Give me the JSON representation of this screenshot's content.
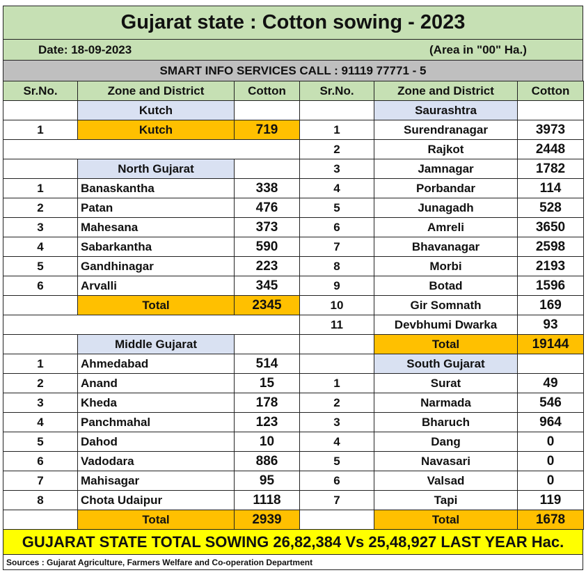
{
  "header": {
    "title": "Gujarat state : Cotton sowing - 2023",
    "date": "Date: 18-09-2023",
    "unit": "(Area in \"00\" Ha.)",
    "contact": "SMART INFO SERVICES CALL : 91119 77771 - 5"
  },
  "columns": [
    "Sr.No.",
    "Zone and District",
    "Cotton"
  ],
  "left": [
    {
      "zone": "Kutch",
      "rows": [
        [
          1,
          "Kutch",
          719
        ]
      ]
    },
    {
      "zone": "North Gujarat",
      "rows": [
        [
          1,
          "Banaskantha",
          338
        ],
        [
          2,
          "Patan",
          476
        ],
        [
          3,
          "Mahesana",
          373
        ],
        [
          4,
          "Sabarkantha",
          590
        ],
        [
          5,
          "Gandhinagar",
          223
        ],
        [
          6,
          "Arvalli",
          345
        ]
      ],
      "total_label": "Total",
      "total": 2345
    },
    {
      "zone": "Middle Gujarat",
      "rows": [
        [
          1,
          "Ahmedabad",
          514
        ],
        [
          2,
          "Anand",
          15
        ],
        [
          3,
          "Kheda",
          178
        ],
        [
          4,
          "Panchmahal",
          123
        ],
        [
          5,
          "Dahod",
          10
        ],
        [
          6,
          "Vadodara",
          886
        ],
        [
          7,
          "Mahisagar",
          95
        ],
        [
          8,
          "Chota Udaipur",
          1118
        ]
      ],
      "total_label": "Total",
      "total": 2939
    }
  ],
  "right": [
    {
      "zone": "Saurashtra",
      "rows": [
        [
          1,
          "Surendranagar",
          3973
        ],
        [
          2,
          "Rajkot",
          2448
        ],
        [
          3,
          "Jamnagar",
          1782
        ],
        [
          4,
          "Porbandar",
          114
        ],
        [
          5,
          "Junagadh",
          528
        ],
        [
          6,
          "Amreli",
          3650
        ],
        [
          7,
          "Bhavanagar",
          2598
        ],
        [
          8,
          "Morbi",
          2193
        ],
        [
          9,
          "Botad",
          1596
        ],
        [
          10,
          "Gir Somnath",
          169
        ],
        [
          11,
          "Devbhumi Dwarka",
          93
        ]
      ],
      "total_label": "Total",
      "total": 19144
    },
    {
      "zone": "South Gujarat",
      "rows": [
        [
          1,
          "Surat",
          49
        ],
        [
          2,
          "Narmada",
          546
        ],
        [
          3,
          "Bharuch",
          964
        ],
        [
          4,
          "Dang",
          0
        ],
        [
          5,
          "Navasari",
          0
        ],
        [
          6,
          "Valsad",
          0
        ],
        [
          7,
          "Tapi",
          119
        ]
      ],
      "total_label": "Total",
      "total": 1678
    }
  ],
  "footer": {
    "summary": "GUJARAT STATE TOTAL SOWING 26,82,384 Vs 25,48,927 LAST YEAR Hac.",
    "source": "Sources : Gujarat Agriculture, Farmers Welfare and Co-operation Department"
  }
}
